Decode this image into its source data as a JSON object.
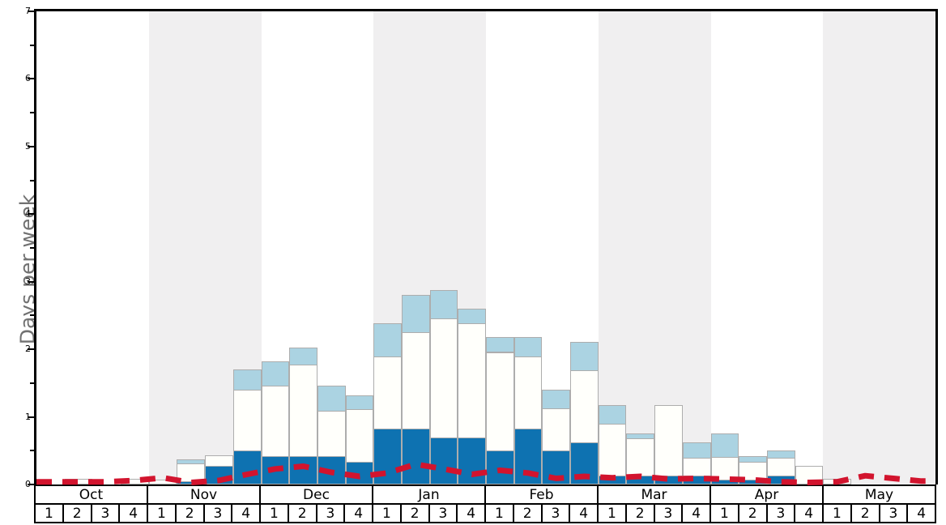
{
  "chart": {
    "ylabel": "Days per week",
    "ymin": 0,
    "ymax": 7,
    "major_tick_step": 1,
    "minor_tick_step": 0.5,
    "band_color": "#f0eff0",
    "shaded_months": [
      "Nov",
      "Jan",
      "Mar",
      "May"
    ],
    "colors": {
      "dark_blue_bar": "#0e72b1",
      "white_bar": "#fffffb",
      "light_blue_bar": "#abd3e2",
      "bar_border": "#adadad",
      "red_dashed_line": "#d2142e",
      "frame": "#000000",
      "ylabel_text": "#717171"
    }
  },
  "chart_data": {
    "type": "bar",
    "stacked": true,
    "months": [
      "Oct",
      "Nov",
      "Dec",
      "Jan",
      "Feb",
      "Mar",
      "Apr",
      "May"
    ],
    "week_labels": [
      "1",
      "2",
      "3",
      "4"
    ],
    "weeks_total": 32,
    "ylabel": "Days per week",
    "ylim": [
      0,
      7
    ],
    "grid": false,
    "legend": "none",
    "series_note": "values are cumulative stack tops in days-per-week for each of 32 weeks (Oct w1 .. May w4)",
    "series": [
      {
        "name": "dark-blue-segment-top",
        "color": "#0e72b1",
        "values": [
          0,
          0,
          0,
          0,
          0,
          0.05,
          0.28,
          0.5,
          0.42,
          0.42,
          0.42,
          0.33,
          0.83,
          0.83,
          0.7,
          0.7,
          0.5,
          0.83,
          0.5,
          0.62,
          0.13,
          0.13,
          0.13,
          0.13,
          0.07,
          0.07,
          0.13,
          0,
          0,
          0,
          0,
          0
        ]
      },
      {
        "name": "white-segment-top",
        "color": "#fffffb",
        "values": [
          0,
          0.08,
          0,
          0.08,
          0.07,
          0.31,
          0.43,
          1.4,
          1.46,
          1.77,
          1.09,
          1.11,
          1.89,
          2.25,
          2.46,
          2.39,
          1.96,
          1.9,
          1.13,
          1.69,
          0.9,
          0.68,
          1.18,
          0.4,
          0.41,
          0.34,
          0.39,
          0.27,
          0.08,
          0,
          0,
          0
        ]
      },
      {
        "name": "light-blue-segment-top",
        "color": "#abd3e2",
        "values": [
          0,
          0.08,
          0,
          0.08,
          0.07,
          0.37,
          0.43,
          1.7,
          1.82,
          2.03,
          1.46,
          1.32,
          2.39,
          2.81,
          2.88,
          2.6,
          2.18,
          2.18,
          1.4,
          2.11,
          1.18,
          0.75,
          1.18,
          0.62,
          0.76,
          0.42,
          0.5,
          0.27,
          0.08,
          0,
          0,
          0
        ]
      }
    ],
    "line": {
      "name": "red-dashed-line",
      "color": "#d2142e",
      "style": "dashed",
      "values": [
        0.04,
        0.04,
        0.04,
        0.06,
        0.1,
        0.03,
        0.06,
        0.15,
        0.23,
        0.27,
        0.18,
        0.12,
        0.17,
        0.3,
        0.23,
        0.15,
        0.21,
        0.17,
        0.09,
        0.12,
        0.1,
        0.12,
        0.08,
        0.09,
        0.08,
        0.07,
        0.04,
        0.03,
        0.04,
        0.13,
        0.09,
        0.05
      ]
    },
    "y_tick_labels": [
      "0",
      "1",
      "2",
      "3",
      "4",
      "5",
      "6",
      "7"
    ]
  }
}
